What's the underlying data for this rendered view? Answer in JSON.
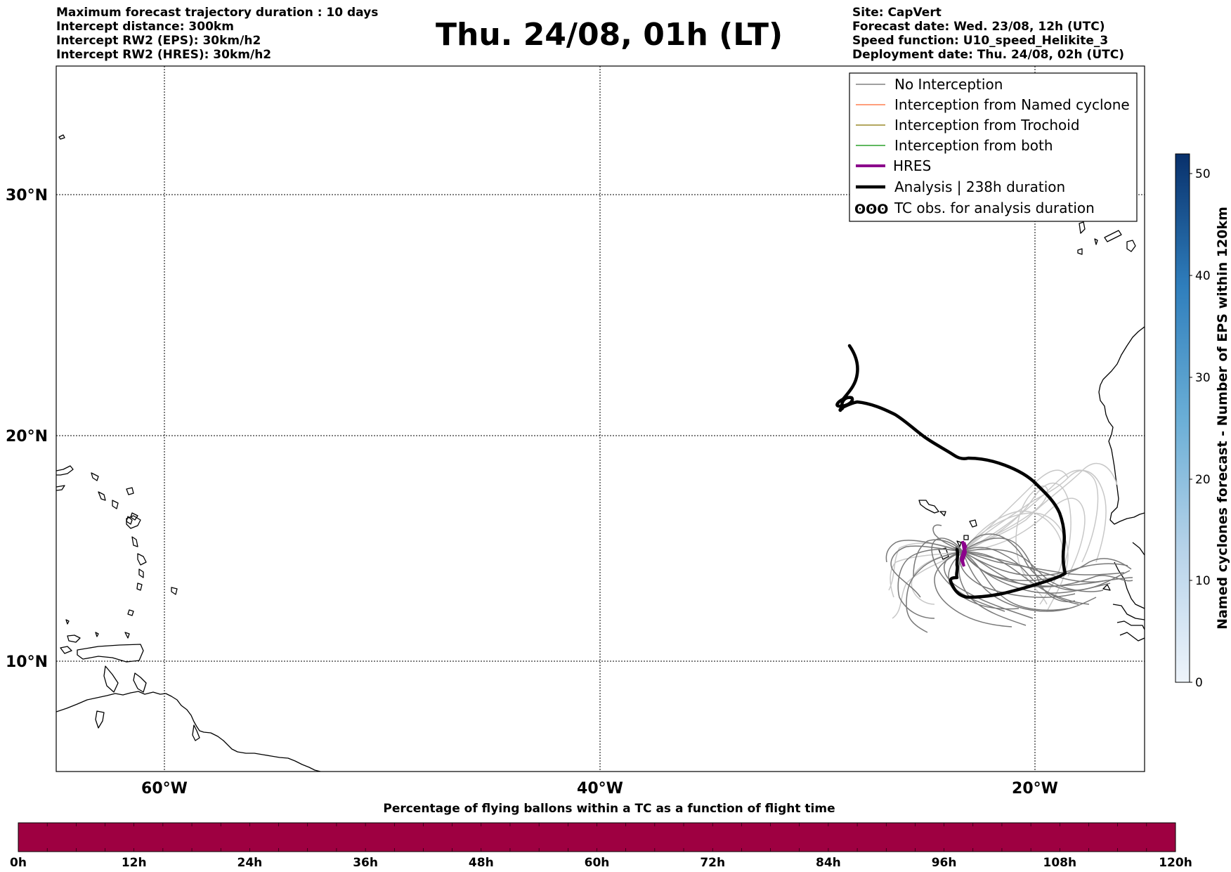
{
  "header": {
    "left_lines": [
      "Maximum forecast trajectory duration : 10 days",
      "Intercept distance: 300km",
      "Intercept RW2 (EPS):  30km/h2",
      "Intercept RW2 (HRES): 30km/h2"
    ],
    "title": "Thu. 24/08, 01h (LT)",
    "right_lines": [
      "Site: CapVert",
      "Forecast date: Wed. 23/08, 12h (UTC)",
      "Speed function: U10_speed_Helikite_3",
      "Deployment date: Thu. 24/08, 02h (UTC)"
    ]
  },
  "map": {
    "lat_labels": [
      "30°N",
      "20°N",
      "10°N"
    ],
    "lon_labels": [
      "60°W",
      "40°W",
      "20°W"
    ],
    "legend": [
      {
        "label": "No Interception",
        "color": "#808080",
        "style": "thin"
      },
      {
        "label": "Interception from Named cyclone",
        "color": "#ff7f50",
        "style": "thin"
      },
      {
        "label": "Interception from Trochoid",
        "color": "#9a8a2a",
        "style": "thin"
      },
      {
        "label": "Interception from both",
        "color": "#2ca02c",
        "style": "thin"
      },
      {
        "label": "HRES",
        "color": "#8b008b",
        "style": "thick"
      },
      {
        "label": "Analysis | 238h duration",
        "color": "#000000",
        "style": "thick"
      },
      {
        "label": "TC obs. for analysis duration",
        "color": "#000000",
        "style": "tc-symbol"
      }
    ],
    "tc_symbol": "ʘʘʘ",
    "colors": {
      "no_interception": "#808080",
      "light_trajectory": "#c8c8c8",
      "hres": "#8b008b",
      "analysis": "#000000"
    }
  },
  "colorbar_right": {
    "title": "Named cyclones forecast - Number of EPS within 120km",
    "ticks": [
      "0",
      "10",
      "20",
      "30",
      "40",
      "50"
    ],
    "color_low": "#e6eef8",
    "color_high": "#08306b"
  },
  "colorbar_bottom": {
    "title": "Percentage of flying ballons within a TC as a function of flight time",
    "ticks": [
      "0h",
      "12h",
      "24h",
      "36h",
      "48h",
      "60h",
      "72h",
      "84h",
      "96h",
      "108h",
      "120h"
    ],
    "color": "#9e0041"
  }
}
